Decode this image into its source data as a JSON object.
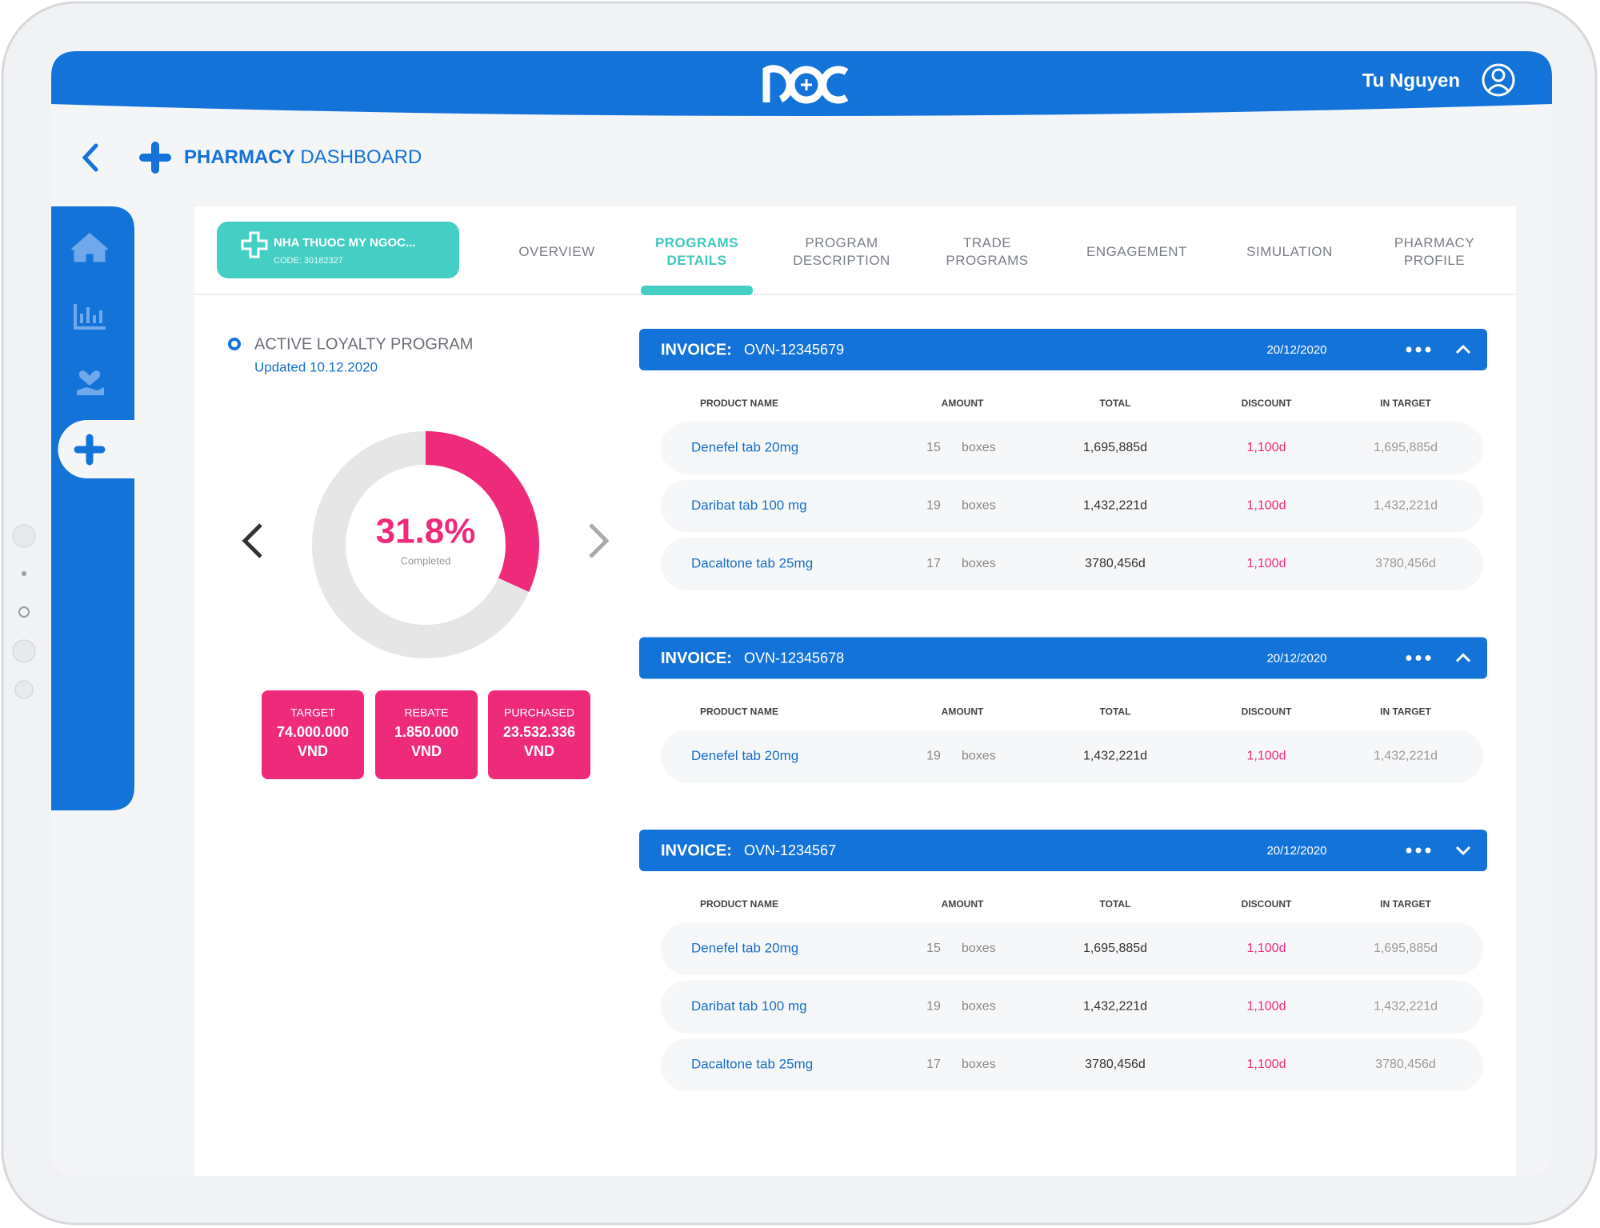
{
  "header": {
    "user": "Tu Nguyen"
  },
  "page": {
    "title_bold": "PHARMACY",
    "title_rest": "DASHBOARD"
  },
  "pharmacy": {
    "name": "NHA THUOC MY NGOC...",
    "code": "CODE: 30182327"
  },
  "tabs": {
    "items": [
      "OVERVIEW",
      "PROGRAMS DETAILS",
      "PROGRAM DESCRIPTION",
      "TRADE PROGRAMS",
      "ENGAGEMENT",
      "SIMULATION",
      "PHARMACY PROFILE"
    ],
    "active": 1
  },
  "program": {
    "title": "ACTIVE LOYALTY PROGRAM",
    "updated": "Updated 10.12.2020",
    "completion": {
      "value": 31.8,
      "label": "31.8%"
    },
    "caption": "Completed",
    "stats": [
      {
        "label": "TARGET",
        "value": "74.000.000",
        "unit": "VND"
      },
      {
        "label": "REBATE",
        "value": "1.850.000",
        "unit": "VND"
      },
      {
        "label": "PURCHASED",
        "value": "23.532.336",
        "unit": "VND"
      }
    ]
  },
  "columns": {
    "product": "PRODUCT NAME",
    "amount": "AMOUNT",
    "total": "TOTAL",
    "discount": "DISCOUNT",
    "in_target": "IN TARGET"
  },
  "invoices": [
    {
      "label": "INVOICE:",
      "number": "OVN-12345679",
      "date": "20/12/2020",
      "chevron": "up",
      "rows": [
        {
          "product": "Denefel tab 20mg",
          "amount": 15,
          "unit": "boxes",
          "total": "1,695,885d",
          "discount": "1,100d",
          "in_target": "1,695,885d"
        },
        {
          "product": "Daribat tab 100 mg",
          "amount": 19,
          "unit": "boxes",
          "total": "1,432,221d",
          "discount": "1,100d",
          "in_target": "1,432,221d"
        },
        {
          "product": "Dacaltone tab 25mg",
          "amount": 17,
          "unit": "boxes",
          "total": "3780,456d",
          "discount": "1,100d",
          "in_target": "3780,456d"
        }
      ]
    },
    {
      "label": "INVOICE:",
      "number": "OVN-12345678",
      "date": "20/12/2020",
      "chevron": "up",
      "rows": [
        {
          "product": "Denefel tab 20mg",
          "amount": 19,
          "unit": "boxes",
          "total": "1,432,221d",
          "discount": "1,100d",
          "in_target": "1,432,221d"
        }
      ]
    },
    {
      "label": "INVOICE:",
      "number": "OVN-1234567",
      "date": "20/12/2020",
      "chevron": "down",
      "rows": [
        {
          "product": "Denefel tab 20mg",
          "amount": 15,
          "unit": "boxes",
          "total": "1,695,885d",
          "discount": "1,100d",
          "in_target": "1,695,885d"
        },
        {
          "product": "Daribat tab 100 mg",
          "amount": 19,
          "unit": "boxes",
          "total": "1,432,221d",
          "discount": "1,100d",
          "in_target": "1,432,221d"
        },
        {
          "product": "Dacaltone tab 25mg",
          "amount": 17,
          "unit": "boxes",
          "total": "3780,456d",
          "discount": "1,100d",
          "in_target": "3780,456d"
        }
      ]
    }
  ]
}
